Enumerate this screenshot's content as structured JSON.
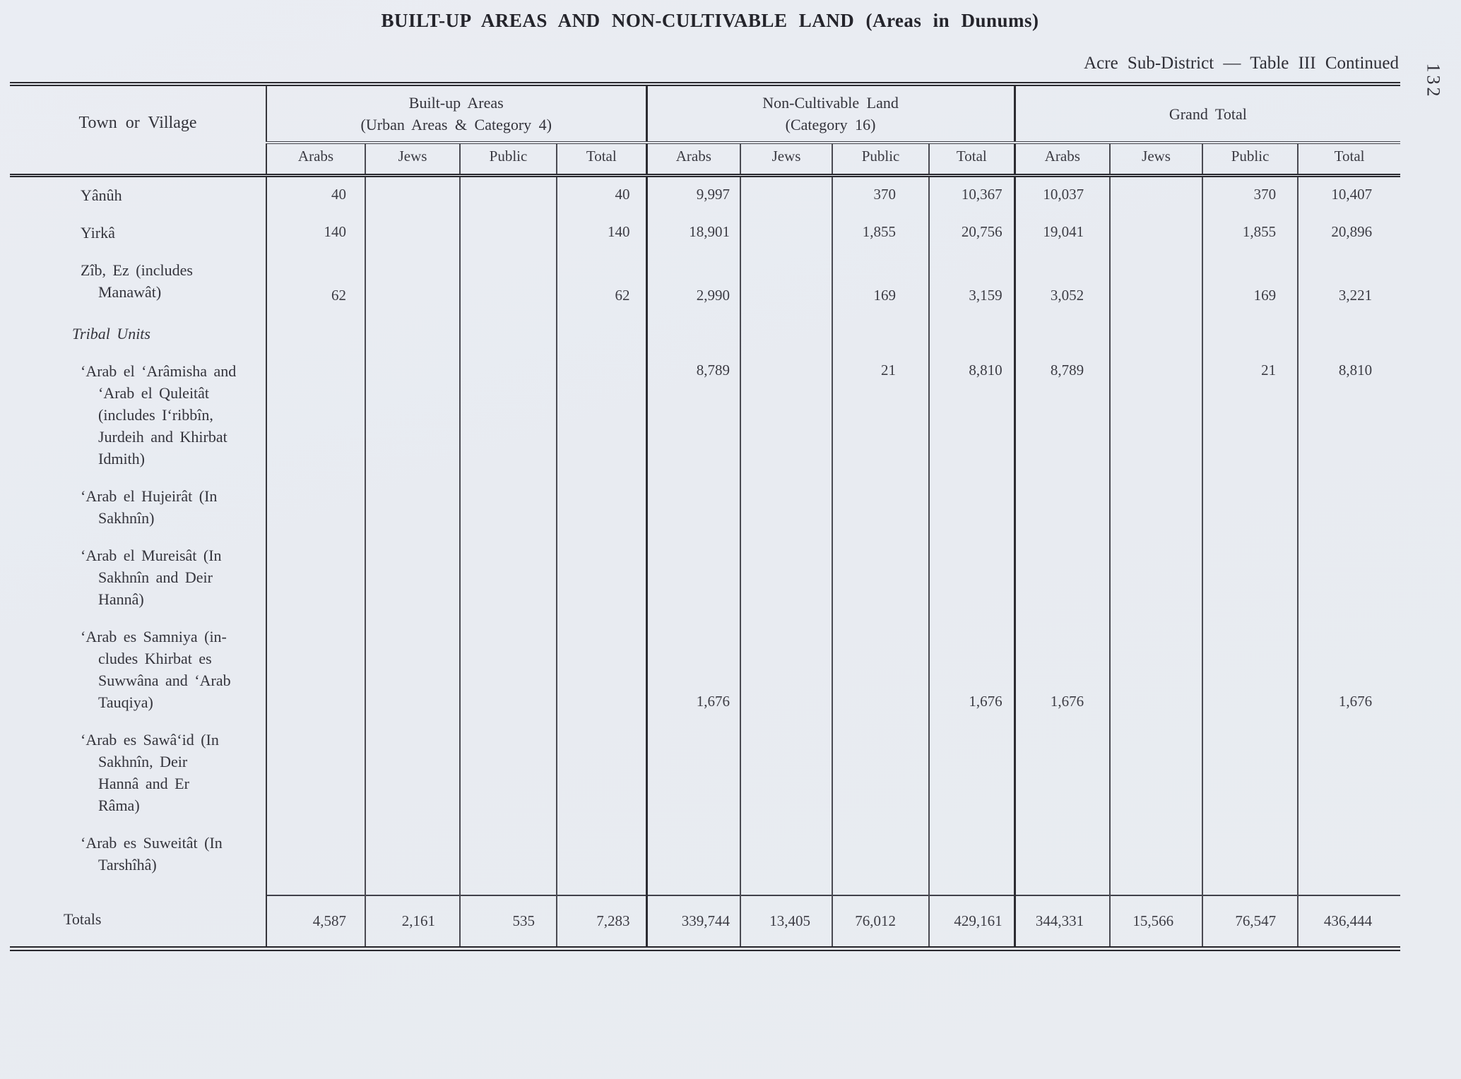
{
  "page": {
    "title": "BUILT-UP AREAS AND NON-CULTIVABLE LAND (Areas in Dunums)",
    "subtitle": "Acre Sub-District — Table III Continued",
    "page_number": "132"
  },
  "table": {
    "corner_header": "Town or Village",
    "groups": [
      {
        "label": "Built-up Areas\n(Urban Areas & Category 4)"
      },
      {
        "label": "Non-Cultivable Land\n(Category 16)"
      },
      {
        "label": "Grand Total"
      }
    ],
    "sub_headers": [
      "Arabs",
      "Jews",
      "Public",
      "Total",
      "Arabs",
      "Jews",
      "Public",
      "Total",
      "Arabs",
      "Jews",
      "Public",
      "Total"
    ],
    "rows": [
      {
        "name": "Yânûh",
        "type": "data",
        "values": [
          "40",
          "",
          "",
          "40",
          "9,997",
          "",
          "370",
          "10,367",
          "10,037",
          "",
          "370",
          "10,407"
        ]
      },
      {
        "name": "Yirkâ",
        "type": "data",
        "values": [
          "140",
          "",
          "",
          "140",
          "18,901",
          "",
          "1,855",
          "20,756",
          "19,041",
          "",
          "1,855",
          "20,896"
        ]
      },
      {
        "name": "Zîb, Ez (includes\nManawât)",
        "type": "data",
        "values": [
          "62",
          "",
          "",
          "62",
          "2,990",
          "",
          "169",
          "3,159",
          "3,052",
          "",
          "169",
          "3,221"
        ]
      },
      {
        "name": "Tribal Units",
        "type": "section",
        "values": [
          "",
          "",
          "",
          "",
          "",
          "",
          "",
          "",
          "",
          "",
          "",
          ""
        ]
      },
      {
        "name": "‘Arab el ‘Arâmisha and\n‘Arab el Quleitât\n(includes I‘ribbîn,\nJurdeih and Khirbat\nIdmith)",
        "type": "data",
        "values": [
          "",
          "",
          "",
          "",
          "8,789",
          "",
          "21",
          "8,810",
          "8,789",
          "",
          "21",
          "8,810"
        ]
      },
      {
        "name": "‘Arab el Hujeirât (In\nSakhnîn)",
        "type": "data",
        "values": [
          "",
          "",
          "",
          "",
          "",
          "",
          "",
          "",
          "",
          "",
          "",
          ""
        ]
      },
      {
        "name": "‘Arab el Mureisât (In\nSakhnîn and Deir\nHannâ)",
        "type": "data",
        "values": [
          "",
          "",
          "",
          "",
          "",
          "",
          "",
          "",
          "",
          "",
          "",
          ""
        ]
      },
      {
        "name": "‘Arab es Samniya (in-\ncludes Khirbat es\nSuwwâna and ‘Arab\nTauqiya)",
        "type": "data",
        "values": [
          "",
          "",
          "",
          "",
          "1,676",
          "",
          "",
          "1,676",
          "1,676",
          "",
          "",
          "1,676"
        ]
      },
      {
        "name": "‘Arab es Sawâ‘id (In\nSakhnîn, Deir\nHannâ and Er\nRâma)",
        "type": "data",
        "values": [
          "",
          "",
          "",
          "",
          "",
          "",
          "",
          "",
          "",
          "",
          "",
          ""
        ]
      },
      {
        "name": "‘Arab es Suweitât (In\nTarshîhâ)",
        "type": "data",
        "values": [
          "",
          "",
          "",
          "",
          "",
          "",
          "",
          "",
          "",
          "",
          "",
          ""
        ]
      },
      {
        "name": "Totals",
        "type": "totals",
        "values": [
          "4,587",
          "2,161",
          "535",
          "7,283",
          "339,744",
          "13,405",
          "76,012",
          "429,161",
          "344,331",
          "15,566",
          "76,547",
          "436,444"
        ]
      }
    ]
  }
}
